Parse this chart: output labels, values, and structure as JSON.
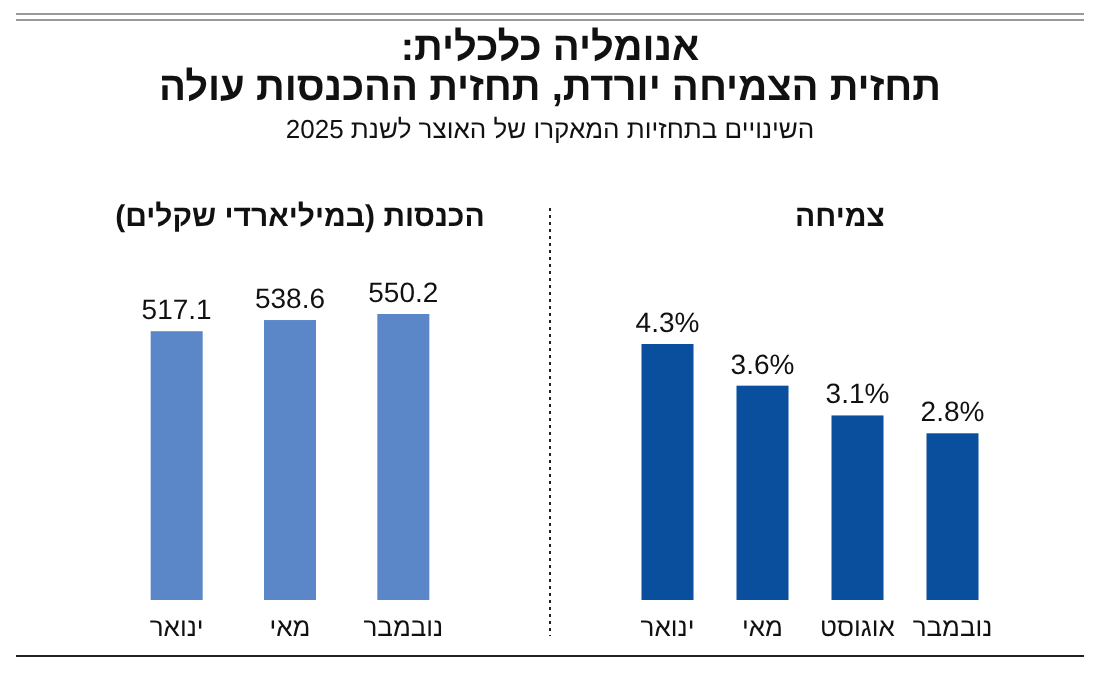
{
  "chart_data": [
    {
      "type": "bar",
      "title": "צמיחה",
      "annotations": [
        "אנומליה כלכלית:",
        "תחזית הצמיחה יורדת, תחזית ההכנסות עולה",
        "השינויים בתחזיות המאקרו של האוצר לשנת 2025"
      ],
      "categories": [
        "ינואר",
        "מאי",
        "אוגוסט",
        "נובמבר"
      ],
      "values": [
        4.3,
        3.6,
        3.1,
        2.8
      ],
      "value_labels": [
        "4.3%",
        "3.6%",
        "3.1%",
        "2.8%"
      ],
      "color": "#0a4f9e"
    },
    {
      "type": "bar",
      "title": "הכנסות (במיליארדי שקלים)",
      "categories": [
        "ינואר",
        "מאי",
        "נובמבר"
      ],
      "values": [
        517.1,
        538.6,
        550.2
      ],
      "data_labels": true,
      "color": "#5b87c8"
    }
  ]
}
